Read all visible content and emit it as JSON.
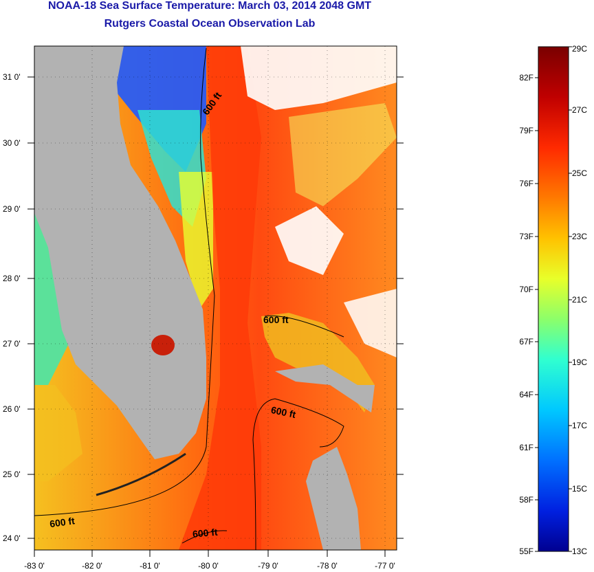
{
  "header": {
    "title": "NOAA-18 Sea Surface Temperature:  March 03, 2014 2048 GMT",
    "subtitle": "Rutgers Coastal Ocean Observation Lab"
  },
  "map": {
    "lat_labels": [
      "31 0'",
      "30 0'",
      "29 0'",
      "28 0'",
      "27 0'",
      "26 0'",
      "25 0'",
      "24 0'"
    ],
    "lon_labels": [
      "-83 0'",
      "-82 0'",
      "-81 0'",
      "-80 0'",
      "-79 0'",
      "-78 0'",
      "-77 0'"
    ],
    "contour_label": "600 ft"
  },
  "colorbar": {
    "celsius": [
      "29C",
      "27C",
      "25C",
      "23C",
      "21C",
      "19C",
      "17C",
      "15C",
      "13C"
    ],
    "fahrenheit": [
      "82F",
      "79F",
      "76F",
      "73F",
      "70F",
      "67F",
      "64F",
      "61F",
      "58F",
      "55F"
    ],
    "colors": [
      "#7a0000",
      "#c00000",
      "#ff2a00",
      "#ff7a00",
      "#ffc200",
      "#e8ff2a",
      "#8cff6a",
      "#30ffd0",
      "#00c8ff",
      "#0070ff",
      "#0020e0",
      "#000090"
    ]
  }
}
